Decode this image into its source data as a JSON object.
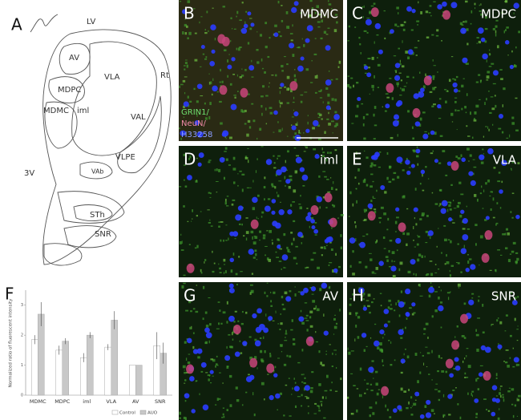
{
  "panel_a": {
    "letter": "A",
    "regions": [
      "LV",
      "AV",
      "VLA",
      "Rt",
      "MDPC",
      "MDMC",
      "iml",
      "VAL",
      "VLPE",
      "VAb",
      "3V",
      "STh",
      "SNR"
    ]
  },
  "micrographs": [
    {
      "letter": "B",
      "region": "MDMC"
    },
    {
      "letter": "C",
      "region": "MDPC"
    },
    {
      "letter": "D",
      "region": "iml"
    },
    {
      "letter": "E",
      "region": "VLA"
    },
    {
      "letter": "G",
      "region": "AV"
    },
    {
      "letter": "H",
      "region": "SNR"
    }
  ],
  "stain_legend": [
    "GRIN1/",
    "NeuN/",
    "H33258"
  ],
  "chart_data": {
    "type": "bar",
    "panel_letter": "F",
    "ylabel": "Normalized ratio of fluorescent intensity",
    "categories": [
      "MDMC",
      "MDPC",
      "iml",
      "VLA",
      "AV",
      "SNR"
    ],
    "series": [
      {
        "name": "Control",
        "color": "#ffffff",
        "values": [
          1.85,
          1.5,
          1.25,
          1.6,
          1.0,
          1.65
        ],
        "errors": [
          0.15,
          0.15,
          0.15,
          0.1,
          0,
          0.45
        ]
      },
      {
        "name": "AUO",
        "color": "#c8c8c8",
        "values": [
          2.7,
          1.8,
          2.0,
          2.5,
          1.0,
          1.4
        ],
        "errors": [
          0.4,
          0.1,
          0.1,
          0.3,
          0,
          0.35
        ]
      }
    ],
    "ylim": [
      0,
      3.5
    ],
    "yticks": [
      0,
      1,
      2,
      3
    ]
  }
}
